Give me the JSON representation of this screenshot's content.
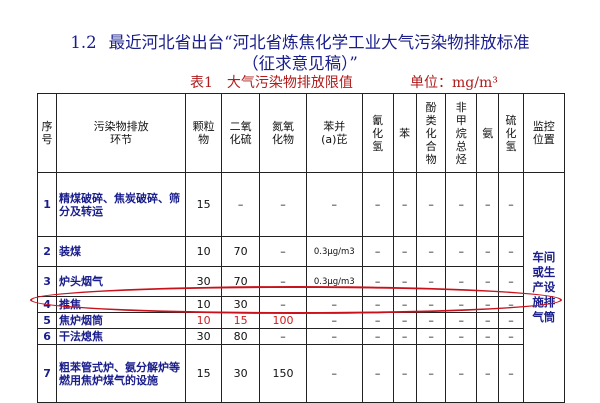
{
  "heading": {
    "number": "1.2",
    "line1": "最近河北省出台“河北省炼焦化学工业大气污染物排放标准",
    "line2": "（征求意见稿）”"
  },
  "caption": {
    "table_title": "表1　大气污染物排放限值",
    "unit": "单位：mg/m³"
  },
  "table": {
    "headers": [
      "序号",
      "污染物排放环节",
      "颗粒物",
      "二氧化硫",
      "氮氧化物",
      "苯并(a)芘",
      "氰化氢",
      "苯",
      "酚类化合物",
      "非甲烷总烃",
      "氨",
      "硫化氢",
      "监控位置"
    ],
    "rows": [
      {
        "seq": "1",
        "process": "精煤破碎、焦炭破碎、筛分及转运",
        "values": [
          "15",
          "–",
          "–",
          "–",
          "–",
          "–",
          "–",
          "–",
          "–",
          "–"
        ]
      },
      {
        "seq": "2",
        "process": "装煤",
        "values": [
          "10",
          "70",
          "–",
          "0.3μg/m3",
          "–",
          "–",
          "–",
          "–",
          "–",
          "–"
        ]
      },
      {
        "seq": "3",
        "process": "炉头烟气",
        "values": [
          "30",
          "70",
          "–",
          "0.3μg/m3",
          "–",
          "–",
          "–",
          "–",
          "–",
          "–"
        ]
      },
      {
        "seq": "4",
        "process": "推焦",
        "values": [
          "10",
          "30",
          "–",
          "–",
          "–",
          "–",
          "–",
          "–",
          "–",
          "–"
        ]
      },
      {
        "seq": "5",
        "process": "焦炉烟筒",
        "values": [
          "10",
          "15",
          "100",
          "–",
          "–",
          "–",
          "–",
          "–",
          "–",
          "–"
        ]
      },
      {
        "seq": "6",
        "process": "干法熄焦",
        "values": [
          "30",
          "80",
          "–",
          "–",
          "–",
          "–",
          "–",
          "–",
          "–",
          "–"
        ]
      },
      {
        "seq": "7",
        "process": "粗苯管式炉、氨分解炉等燃用焦炉煤气的设施",
        "values": [
          "15",
          "30",
          "150",
          "–",
          "–",
          "–",
          "–",
          "–",
          "–",
          "–"
        ]
      }
    ],
    "monitor_location": "车间或生产设施排气筒"
  }
}
